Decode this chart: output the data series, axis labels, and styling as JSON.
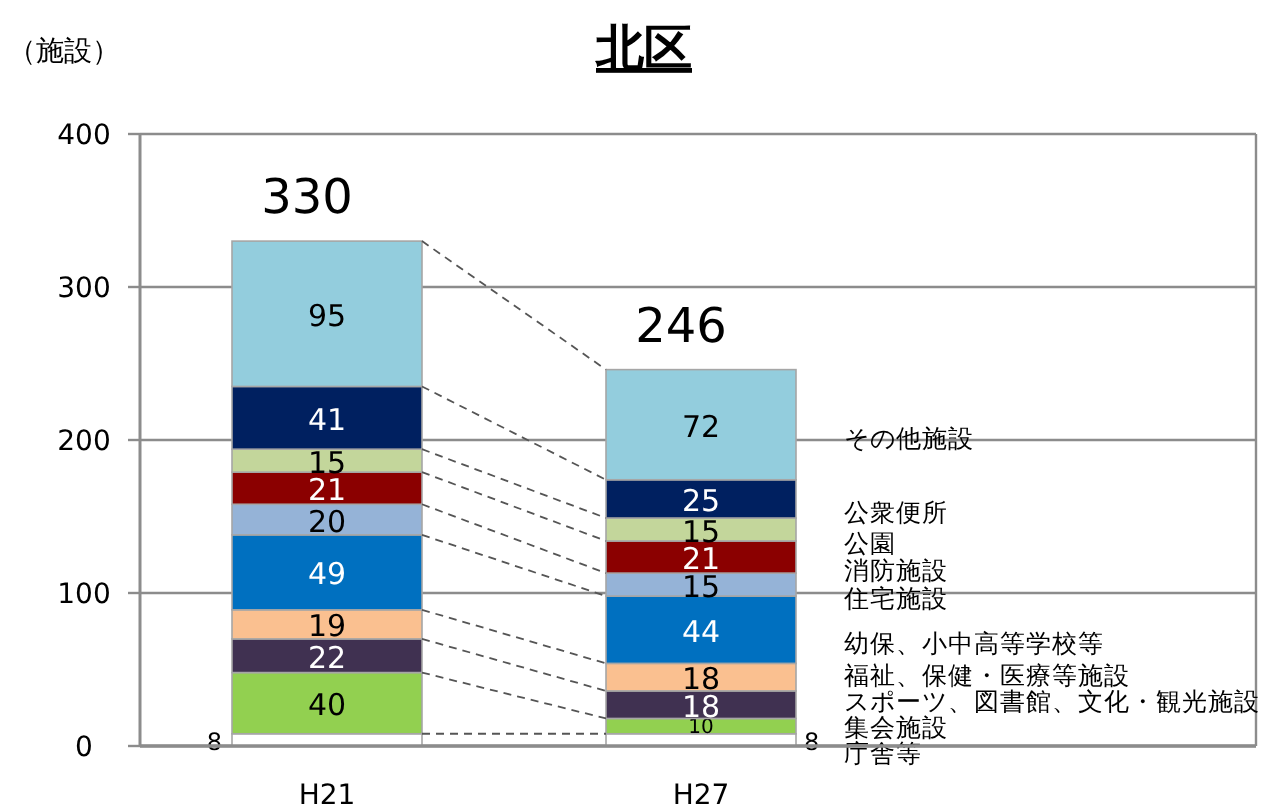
{
  "chart_data": {
    "type": "bar",
    "stacked": true,
    "title": "北区",
    "ylabel": "（施設）",
    "categories": [
      "H21",
      "H27"
    ],
    "ylim": [
      0,
      400
    ],
    "yticks": [
      0,
      100,
      200,
      300,
      400
    ],
    "grid": "y",
    "data_labels": true,
    "totals": [
      "330",
      "246"
    ],
    "series": [
      {
        "name": "庁舎等",
        "color": "#ffffff",
        "values": [
          8,
          8
        ]
      },
      {
        "name": "集会施設",
        "color": "#92d050",
        "values": [
          40,
          10
        ]
      },
      {
        "name": "スポーツ、図書館、文化・観光施設",
        "color": "#403151",
        "values": [
          22,
          18
        ]
      },
      {
        "name": "福祉、保健・医療等施設",
        "color": "#fac090",
        "values": [
          19,
          18
        ]
      },
      {
        "name": "幼保、小中高等学校等",
        "color": "#0070c0",
        "values": [
          49,
          44
        ]
      },
      {
        "name": "住宅施設",
        "color": "#95b3d7",
        "values": [
          20,
          15
        ]
      },
      {
        "name": "消防施設",
        "color": "#8b0000",
        "values": [
          21,
          21
        ]
      },
      {
        "name": "公園",
        "color": "#c3d69b",
        "values": [
          15,
          15
        ]
      },
      {
        "name": "公衆便所",
        "color": "#002060",
        "values": [
          41,
          25
        ]
      },
      {
        "name": "その他施設",
        "color": "#93cddd",
        "values": [
          95,
          72
        ]
      }
    ]
  }
}
